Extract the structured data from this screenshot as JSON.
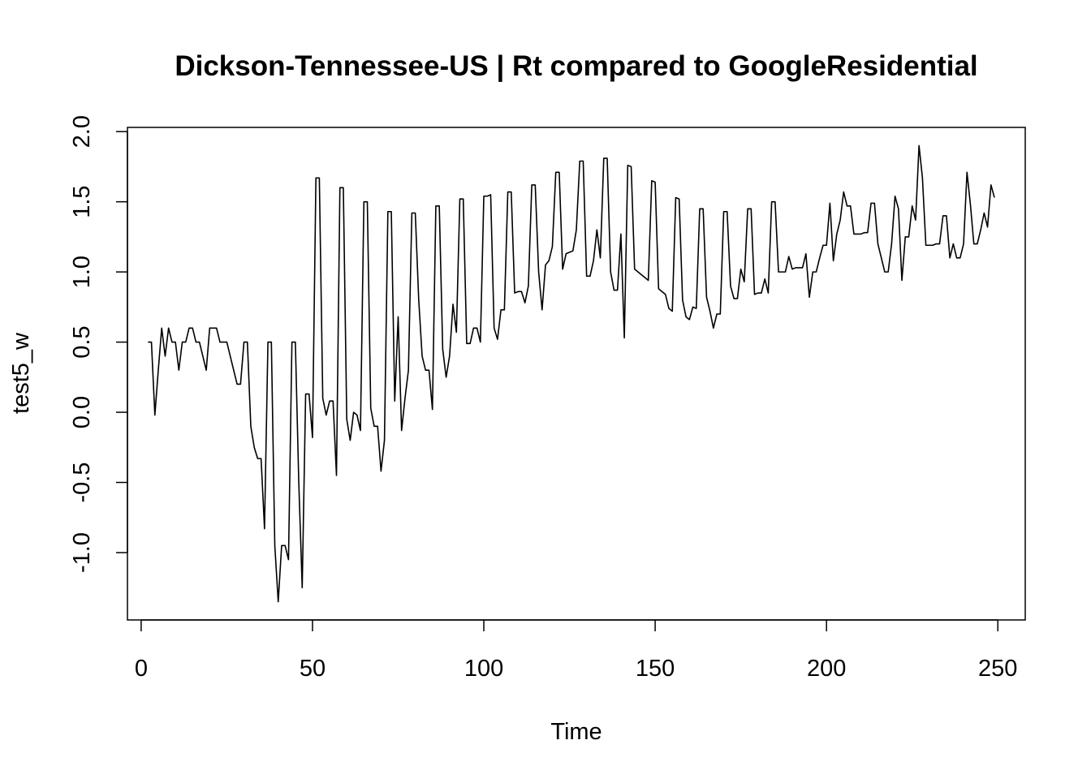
{
  "chart_data": {
    "type": "line",
    "title": "Dickson-Tennessee-US | Rt compared to GoogleResidential",
    "xlabel": "Time",
    "ylabel": "test5_w",
    "xlim": [
      -4,
      258
    ],
    "ylim": [
      -1.48,
      2.03
    ],
    "xticks": [
      0,
      50,
      100,
      150,
      200,
      250
    ],
    "yticks": [
      -1.0,
      -0.5,
      0.0,
      0.5,
      1.0,
      1.5,
      2.0
    ],
    "xtick_labels": [
      "0",
      "50",
      "100",
      "150",
      "200",
      "250"
    ],
    "ytick_labels": [
      "-1.0",
      "-0.5",
      "0.0",
      "0.5",
      "1.0",
      "1.5",
      "2.0"
    ],
    "grid": false,
    "line_color": "#000000",
    "series": [
      {
        "x": [
          2,
          3,
          4,
          5,
          6,
          7,
          8,
          9,
          10,
          11,
          12,
          13,
          14,
          15,
          16,
          17,
          18,
          19,
          20,
          21,
          22,
          23,
          24,
          25,
          26,
          27,
          28,
          29,
          30,
          31,
          32,
          33,
          34,
          35,
          36,
          37,
          38,
          39,
          40,
          41,
          42,
          43,
          44,
          45,
          46,
          47,
          48,
          49,
          50,
          51,
          52,
          53,
          54,
          55,
          56,
          57,
          58,
          59,
          60,
          61,
          62,
          63,
          64,
          65,
          66,
          67,
          68,
          69,
          70,
          71,
          72,
          73,
          74,
          75,
          76,
          77,
          78,
          79,
          80,
          81,
          82,
          83,
          84,
          85,
          86,
          87,
          88,
          89,
          90,
          91,
          92,
          93,
          94,
          95,
          96,
          97,
          98,
          99,
          100,
          101,
          102,
          103,
          104,
          105,
          106,
          107,
          108,
          109,
          110,
          111,
          112,
          113,
          114,
          115,
          116,
          117,
          118,
          119,
          120,
          121,
          122,
          123,
          124,
          125,
          126,
          127,
          128,
          129,
          130,
          131,
          132,
          133,
          134,
          135,
          136,
          137,
          138,
          139,
          140,
          141,
          142,
          143,
          144,
          145,
          146,
          147,
          148,
          149,
          150,
          151,
          152,
          153,
          154,
          155,
          156,
          157,
          158,
          159,
          160,
          161,
          162,
          163,
          164,
          165,
          166,
          167,
          168,
          169,
          170,
          171,
          172,
          173,
          174,
          175,
          176,
          177,
          178,
          179,
          180,
          181,
          182,
          183,
          184,
          185,
          186,
          187,
          188,
          189,
          190,
          191,
          192,
          193,
          194,
          195,
          196,
          197,
          198,
          199,
          200,
          201,
          202,
          203,
          204,
          205,
          206,
          207,
          208,
          209,
          210,
          211,
          212,
          213,
          214,
          215,
          216,
          217,
          218,
          219,
          220,
          221,
          222,
          223,
          224,
          225,
          226,
          227,
          228,
          229,
          230,
          231,
          232,
          233,
          234,
          235,
          236,
          237,
          238,
          239,
          240,
          241,
          242,
          243,
          244,
          245,
          246,
          247,
          248,
          249
        ],
        "values": [
          0.5,
          0.5,
          -0.02,
          0.3,
          0.6,
          0.4,
          0.6,
          0.5,
          0.5,
          0.3,
          0.5,
          0.5,
          0.6,
          0.6,
          0.5,
          0.5,
          0.4,
          0.3,
          0.6,
          0.6,
          0.6,
          0.5,
          0.5,
          0.5,
          0.4,
          0.3,
          0.2,
          0.2,
          0.5,
          0.5,
          -0.1,
          -0.25,
          -0.33,
          -0.33,
          -0.83,
          0.5,
          0.5,
          -0.95,
          -1.35,
          -0.95,
          -0.95,
          -1.05,
          0.5,
          0.5,
          -0.5,
          -1.25,
          0.13,
          0.13,
          -0.18,
          1.67,
          1.67,
          0.1,
          -0.02,
          0.08,
          0.08,
          -0.45,
          1.6,
          1.6,
          -0.05,
          -0.2,
          0.0,
          -0.02,
          -0.13,
          1.5,
          1.5,
          0.03,
          -0.1,
          -0.1,
          -0.42,
          -0.2,
          1.43,
          1.43,
          0.08,
          0.68,
          -0.13,
          0.1,
          0.3,
          1.42,
          1.42,
          0.8,
          0.4,
          0.3,
          0.3,
          0.02,
          1.47,
          1.47,
          0.45,
          0.25,
          0.4,
          0.77,
          0.57,
          1.52,
          1.52,
          0.49,
          0.49,
          0.6,
          0.6,
          0.5,
          1.54,
          1.54,
          1.55,
          0.6,
          0.52,
          0.73,
          0.73,
          1.57,
          1.57,
          0.85,
          0.86,
          0.86,
          0.78,
          0.9,
          1.62,
          1.62,
          1.0,
          0.73,
          1.05,
          1.08,
          1.18,
          1.71,
          1.71,
          1.02,
          1.13,
          1.14,
          1.15,
          1.3,
          1.79,
          1.79,
          0.97,
          0.97,
          1.08,
          1.3,
          1.1,
          1.81,
          1.81,
          1.0,
          0.87,
          0.87,
          1.27,
          0.53,
          1.76,
          1.75,
          1.02,
          1.0,
          0.98,
          0.96,
          0.94,
          1.65,
          1.64,
          0.88,
          0.86,
          0.84,
          0.74,
          0.72,
          1.53,
          1.52,
          0.8,
          0.68,
          0.66,
          0.75,
          0.74,
          1.45,
          1.45,
          0.82,
          0.72,
          0.6,
          0.7,
          0.7,
          1.43,
          1.43,
          0.9,
          0.81,
          0.81,
          1.02,
          0.93,
          1.45,
          1.45,
          0.84,
          0.85,
          0.85,
          0.95,
          0.85,
          1.5,
          1.5,
          1.0,
          1.0,
          1.0,
          1.11,
          1.02,
          1.03,
          1.03,
          1.03,
          1.13,
          0.82,
          1.0,
          1.0,
          1.1,
          1.19,
          1.19,
          1.49,
          1.08,
          1.27,
          1.37,
          1.57,
          1.47,
          1.47,
          1.27,
          1.27,
          1.27,
          1.28,
          1.28,
          1.49,
          1.49,
          1.2,
          1.1,
          1.0,
          1.0,
          1.2,
          1.54,
          1.45,
          0.94,
          1.25,
          1.25,
          1.47,
          1.37,
          1.9,
          1.67,
          1.19,
          1.19,
          1.19,
          1.2,
          1.2,
          1.4,
          1.4,
          1.1,
          1.2,
          1.1,
          1.1,
          1.2,
          1.71,
          1.48,
          1.2,
          1.2,
          1.3,
          1.42,
          1.32,
          1.62,
          1.53
        ]
      }
    ]
  }
}
